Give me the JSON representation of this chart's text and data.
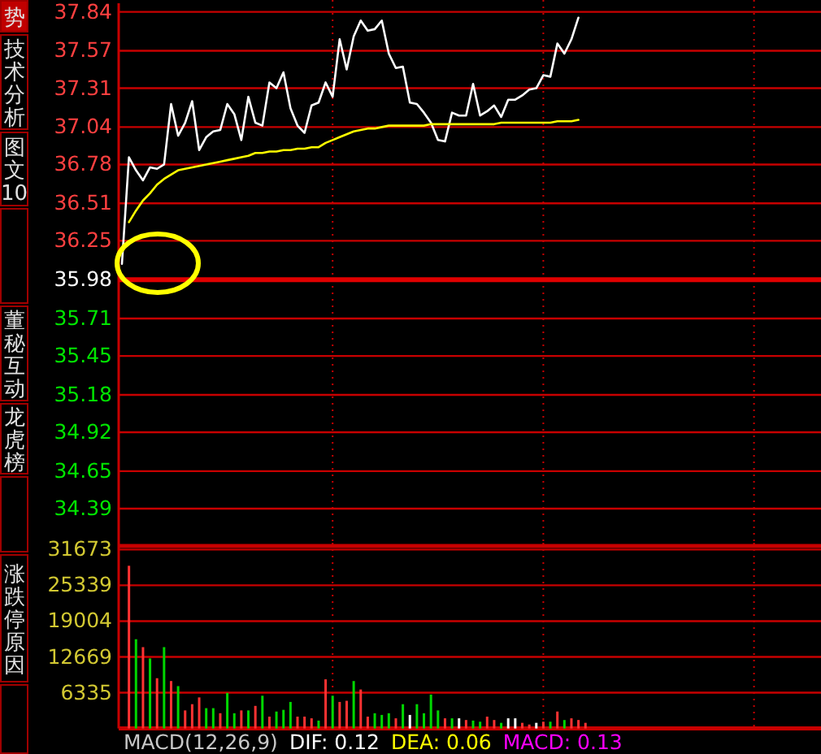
{
  "chart_data": [
    {
      "type": "line",
      "categories": [
        null,
        null,
        null,
        null,
        null,
        null,
        null,
        null,
        null,
        null,
        null,
        null,
        null,
        null,
        null,
        null,
        null,
        null,
        null,
        null,
        null,
        null,
        null,
        null,
        null,
        null,
        null,
        null,
        null,
        null,
        null,
        null,
        null,
        null,
        null,
        null,
        null,
        null,
        null,
        null,
        null,
        null,
        null,
        null,
        null,
        null,
        null,
        null,
        null,
        null,
        null,
        null,
        null,
        null,
        null,
        null,
        null,
        null,
        null,
        null,
        null,
        null,
        null,
        null,
        null,
        null,
        null,
        null,
        null,
        null,
        null,
        null,
        null,
        null,
        null,
        null,
        null,
        null,
        null,
        null,
        null,
        null,
        null,
        null,
        null,
        null,
        null,
        null,
        null,
        null,
        null,
        null,
        null,
        null,
        null,
        null,
        null,
        null,
        null,
        null
      ],
      "ylim": [
        34.13,
        37.9
      ],
      "yticks": [
        37.84,
        37.57,
        37.31,
        37.04,
        36.78,
        36.51,
        36.25,
        35.98,
        35.71,
        35.45,
        35.18,
        34.92,
        34.65,
        34.39
      ],
      "grid": true,
      "tick_labels": "y",
      "ref_lines": [
        {
          "axis": "y",
          "value": 35.98,
          "color": "#e00000"
        }
      ],
      "annotations": [
        "势",
        "技术分析",
        "图文10",
        "董秘互动",
        "龙虎榜",
        "涨跌停原因"
      ],
      "series": [
        {
          "color": "#ffffff",
          "values": [
            36.09,
            36.83,
            36.74,
            36.67,
            36.76,
            36.75,
            36.78,
            37.2,
            36.98,
            37.07,
            37.22,
            36.88,
            36.97,
            37.01,
            37.02,
            37.2,
            37.13,
            36.95,
            37.25,
            37.07,
            37.05,
            37.35,
            37.31,
            37.42,
            37.17,
            37.05,
            37.0,
            37.19,
            37.21,
            37.35,
            37.25,
            37.65,
            37.44,
            37.67,
            37.78,
            37.71,
            37.72,
            37.78,
            37.55,
            37.45,
            37.46,
            37.21,
            37.2,
            37.14,
            37.07,
            36.95,
            36.94,
            37.14,
            37.12,
            37.12,
            37.34,
            37.12,
            37.15,
            37.19,
            37.11,
            37.23,
            37.23,
            37.26,
            37.3,
            37.31,
            37.4,
            37.39,
            37.62,
            37.55,
            37.65,
            37.8,
            null,
            null,
            null,
            null,
            null,
            null,
            null,
            null,
            null,
            null,
            null,
            null,
            null,
            null,
            null,
            null,
            null,
            null,
            null,
            null,
            null,
            null,
            null,
            null,
            null,
            null,
            null,
            null,
            null,
            null,
            null,
            null,
            null,
            null
          ]
        },
        {
          "color": "#ffff00",
          "values": [
            null,
            36.38,
            36.46,
            36.53,
            36.58,
            36.64,
            36.68,
            36.71,
            36.74,
            36.75,
            36.76,
            36.77,
            36.78,
            36.79,
            36.8,
            36.81,
            36.82,
            36.83,
            36.84,
            36.86,
            36.86,
            36.87,
            36.87,
            36.88,
            36.88,
            36.89,
            36.89,
            36.9,
            36.9,
            36.93,
            36.95,
            36.97,
            36.99,
            37.01,
            37.02,
            37.03,
            37.03,
            37.04,
            37.05,
            37.05,
            37.05,
            37.05,
            37.05,
            37.05,
            37.06,
            37.06,
            37.06,
            37.06,
            37.06,
            37.06,
            37.06,
            37.06,
            37.06,
            37.06,
            37.07,
            37.07,
            37.07,
            37.07,
            37.07,
            37.07,
            37.07,
            37.07,
            37.08,
            37.08,
            37.08,
            37.09,
            null,
            null,
            null,
            null,
            null,
            null,
            null,
            null,
            null,
            null,
            null,
            null,
            null,
            null,
            null,
            null,
            null,
            null,
            null,
            null,
            null,
            null,
            null,
            null,
            null,
            null,
            null,
            null,
            null,
            null,
            null,
            null,
            null,
            null
          ]
        }
      ]
    },
    {
      "type": "bar",
      "categories": [
        null,
        null,
        null,
        null,
        null,
        null,
        null,
        null,
        null,
        null,
        null,
        null,
        null,
        null,
        null,
        null,
        null,
        null,
        null,
        null,
        null,
        null,
        null,
        null,
        null,
        null,
        null,
        null,
        null,
        null,
        null,
        null,
        null,
        null,
        null,
        null,
        null,
        null,
        null,
        null,
        null,
        null,
        null,
        null,
        null,
        null,
        null,
        null,
        null,
        null,
        null,
        null,
        null,
        null,
        null,
        null,
        null,
        null,
        null,
        null,
        null,
        null,
        null,
        null,
        null,
        null,
        null,
        null,
        null,
        null,
        null,
        null,
        null,
        null,
        null,
        null,
        null,
        null,
        null,
        null,
        null,
        null,
        null,
        null,
        null,
        null,
        null,
        null,
        null,
        null,
        null,
        null,
        null,
        null,
        null,
        null,
        null,
        null,
        null,
        null
      ],
      "ylim": [
        0,
        32300
      ],
      "yticks": [
        6335,
        12669,
        19004,
        25339,
        31673
      ],
      "grid": true,
      "tick_labels": "y",
      "annotations": [
        "MACD(12,26,9)",
        "DIF: 0.12",
        "DEA: 0.06",
        "MACD: 0.13"
      ],
      "values": [
        null,
        28800,
        15800,
        14400,
        12400,
        8900,
        14400,
        8400,
        7500,
        3200,
        4300,
        5500,
        3600,
        3600,
        2700,
        6300,
        2700,
        3200,
        3200,
        4000,
        5800,
        2100,
        3000,
        3300,
        4700,
        2100,
        2100,
        1800,
        1400,
        8700,
        5800,
        4700,
        4900,
        8400,
        6900,
        2100,
        2700,
        2400,
        2700,
        1800,
        4300,
        2400,
        4300,
        2700,
        6000,
        3200,
        1800,
        1800,
        1800,
        1500,
        1400,
        1200,
        2100,
        1500,
        1000,
        1800,
        1800,
        1000,
        700,
        1000,
        1200,
        1200,
        3000,
        1500,
        1800,
        1500,
        1000,
        null,
        null,
        null,
        null,
        null,
        null,
        null,
        null,
        null,
        null,
        null,
        null,
        null,
        null,
        null,
        null,
        null,
        null,
        null,
        null,
        null,
        null,
        null,
        null,
        null,
        null,
        null,
        null,
        null,
        null,
        null,
        null,
        null
      ],
      "colors": [
        null,
        "#ff3232",
        "#00d700",
        "#ff3232",
        "#00d700",
        "#ff3232",
        "#00d700",
        "#ff3232",
        "#00d700",
        "#ff3232",
        "#ff3232",
        "#ff3232",
        "#00d700",
        "#00d700",
        "#ff3232",
        "#00d700",
        "#00d700",
        "#ff3232",
        "#00d700",
        "#ff3232",
        "#00d700",
        "#ff3232",
        "#00d700",
        "#00d700",
        "#00d700",
        "#ff3232",
        "#ff3232",
        "#ff3232",
        "#00d700",
        "#ff3232",
        "#00d700",
        "#ff3232",
        "#ff3232",
        "#00d700",
        "#ff3232",
        "#ff3232",
        "#00d700",
        "#00d700",
        "#00d700",
        "#ff3232",
        "#00d700",
        "#ffffff",
        "#00d700",
        "#00d700",
        "#00d700",
        "#00d700",
        "#ff3232",
        "#00d700",
        "#ffffff",
        "#ff3232",
        "#00d700",
        "#00d700",
        "#ff3232",
        "#ff3232",
        "#00d700",
        "#ffffff",
        "#ffffff",
        "#ff3232",
        "#ff3232",
        "#ffffff",
        "#ff3232",
        "#00d700",
        "#ff3232",
        "#00d700",
        "#ff3232",
        "#ff3232",
        "#ff3232",
        null,
        null,
        null,
        null,
        null,
        null,
        null,
        null,
        null,
        null,
        null,
        null,
        null,
        null,
        null,
        null,
        null,
        null,
        null,
        null,
        null,
        null,
        null,
        null,
        null,
        null,
        null,
        null,
        null,
        null,
        null,
        null,
        null
      ]
    }
  ]
}
